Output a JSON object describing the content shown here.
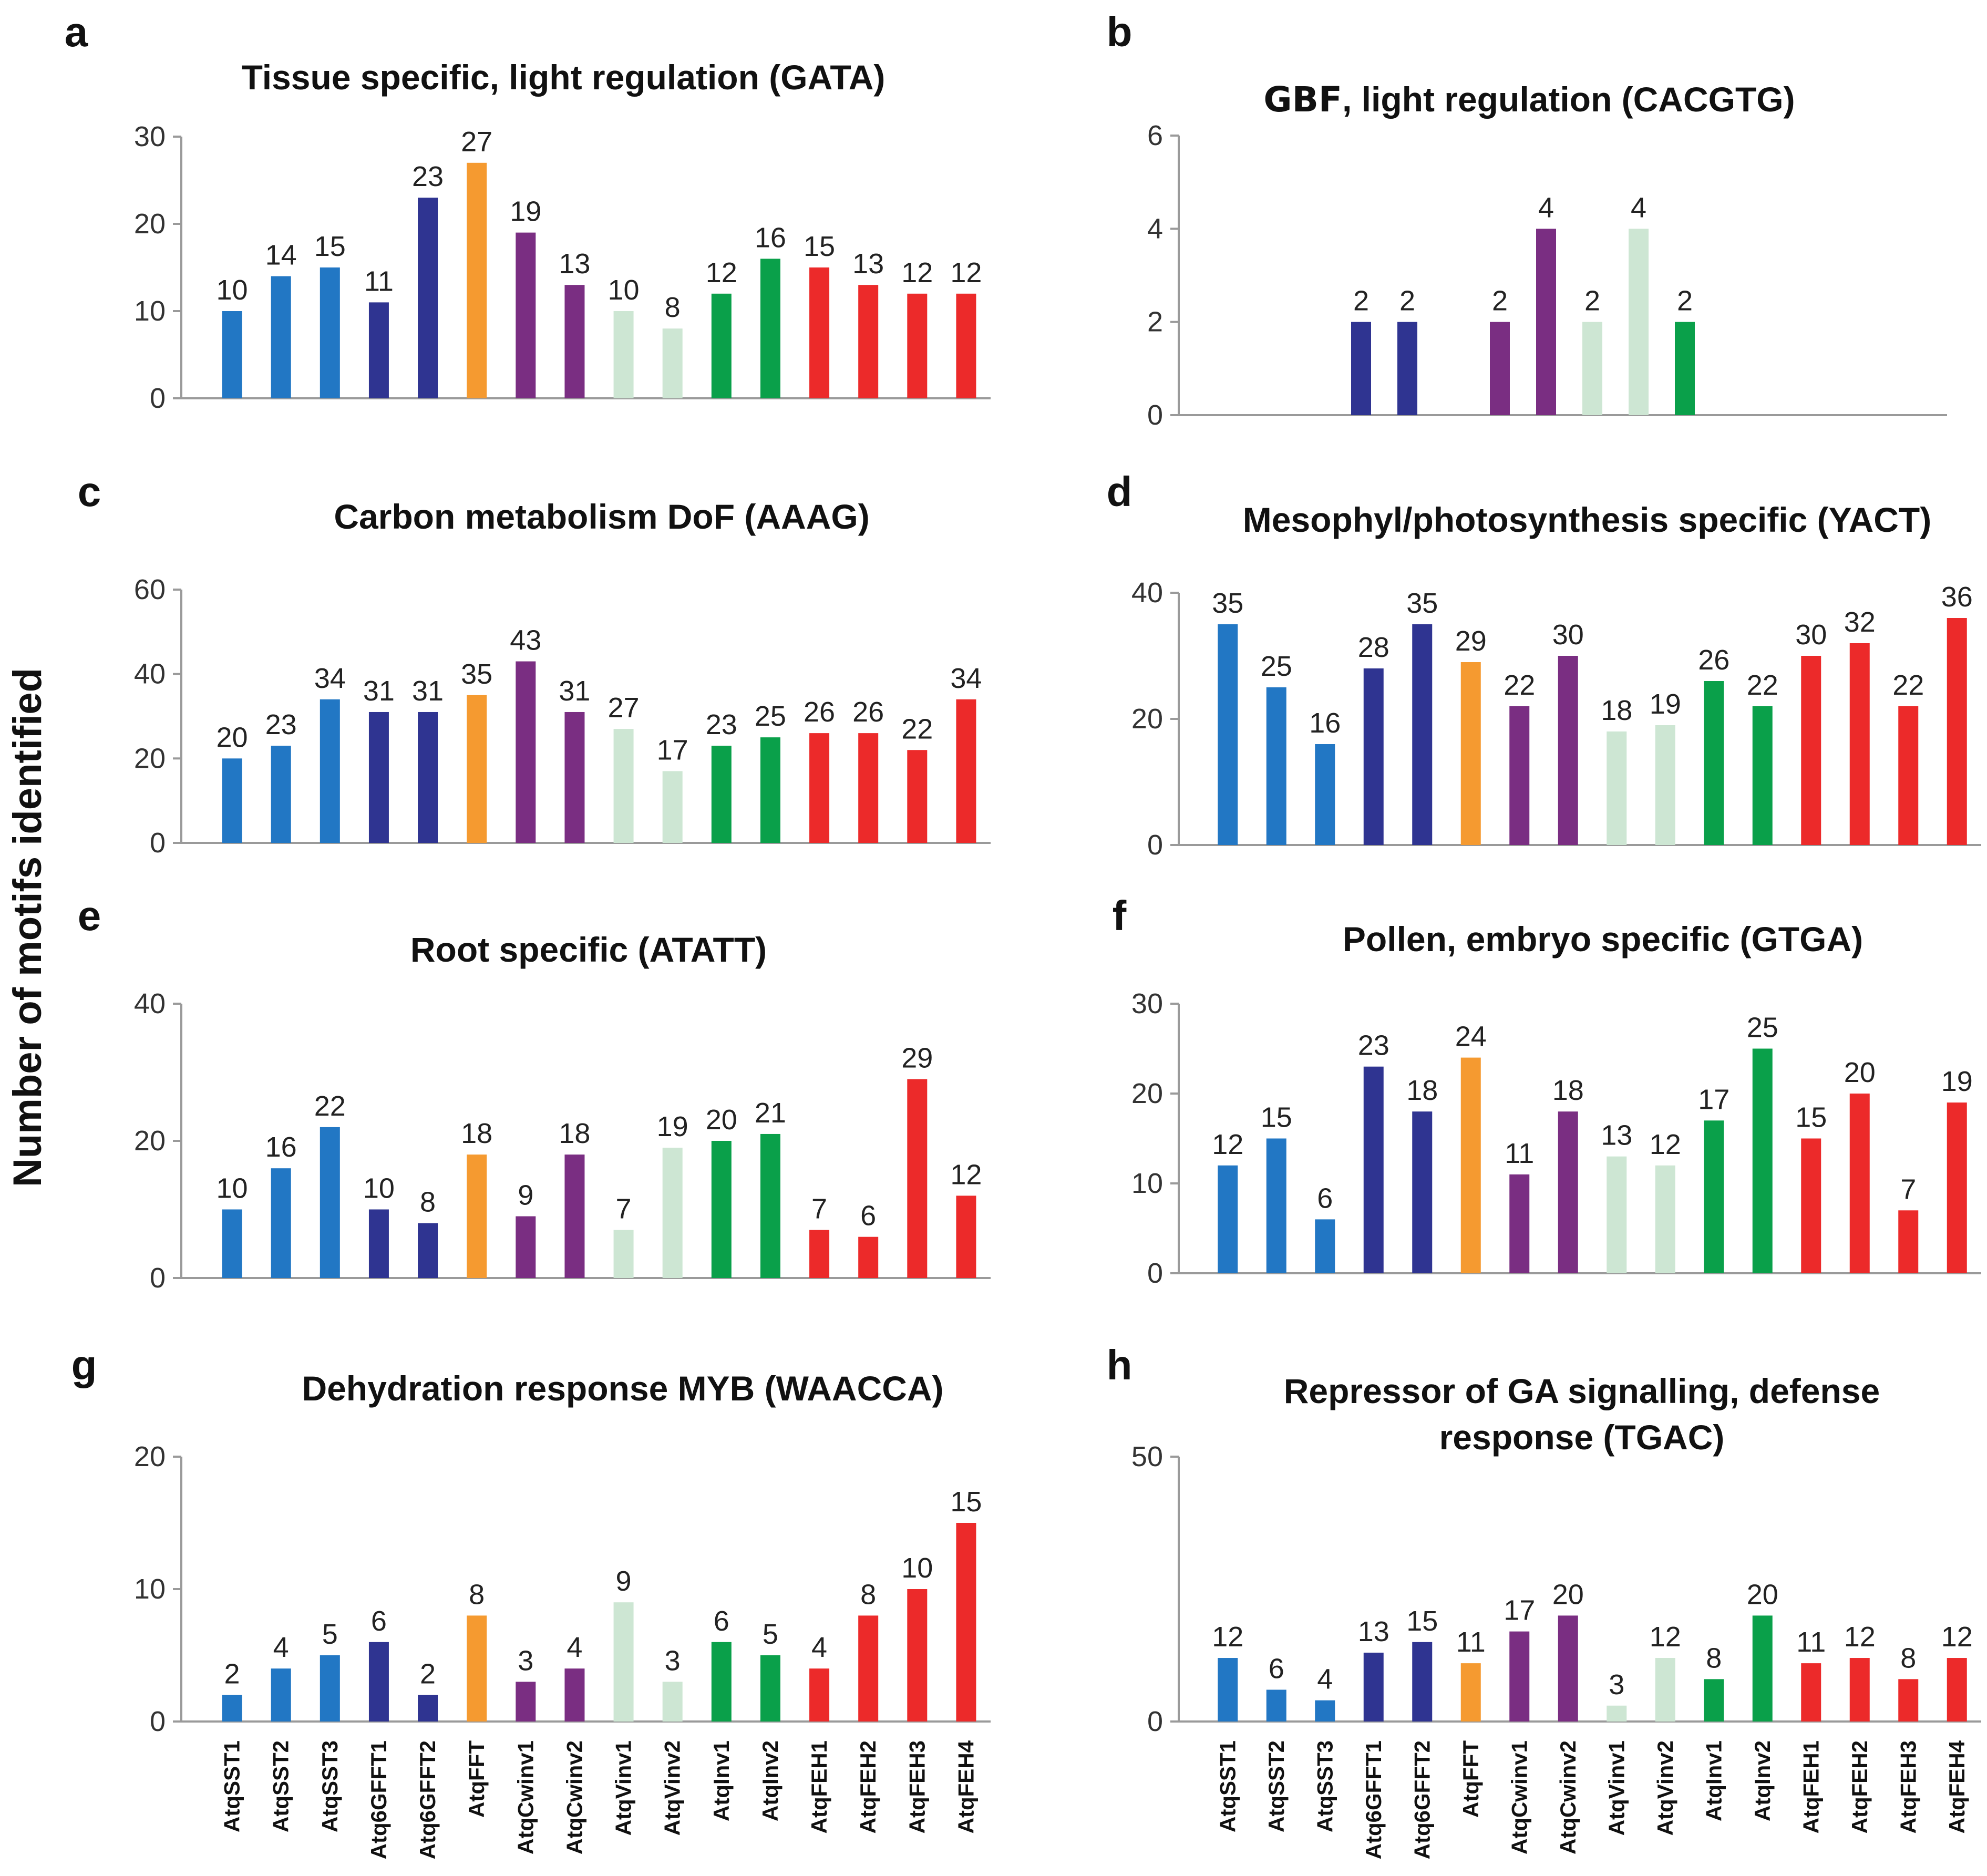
{
  "figure": {
    "y_axis_title": "Number  of motifs identified",
    "categories": [
      "AtqSST1",
      "AtqSST2",
      "AtqSST3",
      "Atq6GFFT1",
      "Atq6GFFT2",
      "AtqFFT",
      "AtqCwinv1",
      "AtqCwinv2",
      "AtqVinv1",
      "AtqVinv2",
      "AtqInv1",
      "AtqInv2",
      "AtqFEH1",
      "AtqFEH2",
      "AtqFEH3",
      "AtqFEH4"
    ],
    "group_colors": {
      "SST": "#2277c4",
      "6GFFT": "#2f3491",
      "FFT": "#f59a30",
      "Cwinv": "#7a2e82",
      "Vinv": "#cde6d3",
      "Inv": "#0aa04a",
      "FEH": "#ec2a2a"
    },
    "bar_groups": [
      "SST",
      "SST",
      "SST",
      "6GFFT",
      "6GFFT",
      "FFT",
      "Cwinv",
      "Cwinv",
      "Vinv",
      "Vinv",
      "Inv",
      "Inv",
      "FEH",
      "FEH",
      "FEH",
      "FEH"
    ]
  },
  "chart_data": [
    {
      "id": "a",
      "letter": "a",
      "type": "bar",
      "title": "Tissue specific, light regulation (GATA)",
      "ylim": [
        0,
        30
      ],
      "yticks": [
        "0",
        "10",
        "20",
        "30"
      ],
      "values": [
        10,
        14,
        15,
        11,
        23,
        27,
        19,
        13,
        10,
        8,
        12,
        16,
        15,
        13,
        12,
        12
      ]
    },
    {
      "id": "b",
      "letter": "b",
      "type": "bar",
      "title_bold": "GBF",
      "title": ", light regulation (CACGTG)",
      "ylim": [
        0,
        6
      ],
      "yticks": [
        "0",
        "2",
        "4",
        "6"
      ],
      "values": [
        null,
        null,
        null,
        2,
        2,
        null,
        2,
        4,
        2,
        4,
        2,
        null,
        null,
        null,
        null,
        null
      ],
      "note": "bars shown at positions 4-11 only"
    },
    {
      "id": "c",
      "letter": "c",
      "type": "bar",
      "title": "Carbon metabolism DoF (AAAG)",
      "ylim": [
        0,
        60
      ],
      "yticks": [
        "0",
        "20",
        "40",
        "60"
      ],
      "values": [
        20,
        23,
        34,
        31,
        31,
        35,
        43,
        31,
        27,
        17,
        23,
        25,
        26,
        26,
        22,
        34
      ]
    },
    {
      "id": "d",
      "letter": "d",
      "type": "bar",
      "title": "Mesophyl/photosynthesis specific  (YACT)",
      "ylim": [
        0,
        40
      ],
      "yticks": [
        "0",
        "20",
        "40"
      ],
      "values": [
        35,
        25,
        16,
        28,
        35,
        29,
        22,
        30,
        18,
        19,
        26,
        22,
        30,
        32,
        22,
        36
      ]
    },
    {
      "id": "e",
      "letter": "e",
      "type": "bar",
      "title": "Root specific  (ATATT)",
      "ylim": [
        0,
        40
      ],
      "yticks": [
        "0",
        "20",
        "40"
      ],
      "values": [
        10,
        16,
        22,
        10,
        8,
        18,
        9,
        18,
        7,
        19,
        20,
        21,
        7,
        6,
        29,
        12
      ]
    },
    {
      "id": "f",
      "letter": "f",
      "type": "bar",
      "title": "Pollen, embryo specific (GTGA)",
      "ylim": [
        0,
        30
      ],
      "yticks": [
        "0",
        "10",
        "20",
        "30"
      ],
      "values": [
        12,
        15,
        6,
        23,
        18,
        24,
        11,
        18,
        13,
        12,
        17,
        25,
        15,
        20,
        7,
        19
      ]
    },
    {
      "id": "g",
      "letter": "g",
      "type": "bar",
      "title": "Dehydration response MYB (WAACCA)",
      "ylim": [
        0,
        20
      ],
      "yticks": [
        "0",
        "10",
        "20"
      ],
      "values": [
        2,
        4,
        5,
        6,
        2,
        8,
        3,
        4,
        9,
        3,
        6,
        5,
        4,
        8,
        10,
        15
      ],
      "show_categories": true
    },
    {
      "id": "h",
      "letter": "h",
      "type": "bar",
      "title": "Repressor of GA signalling, defense",
      "title_line2": "response (TGAC)",
      "ylim": [
        0,
        50
      ],
      "yticks": [
        "0",
        "50"
      ],
      "values": [
        12,
        6,
        4,
        13,
        15,
        11,
        17,
        20,
        3,
        12,
        8,
        20,
        11,
        12,
        8,
        12
      ],
      "show_categories": true
    }
  ]
}
